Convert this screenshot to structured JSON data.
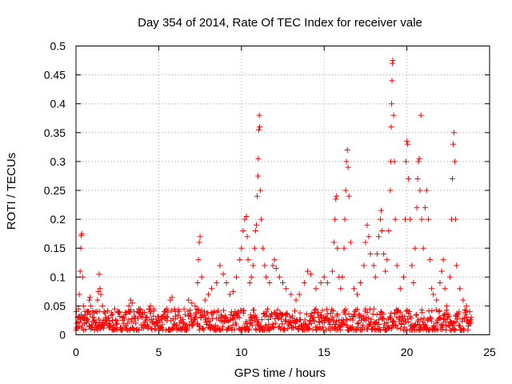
{
  "chart_data": {
    "type": "scatter",
    "title": "Day 354 of 2014, Rate Of TEC Index for receiver vale",
    "xlabel": "GPS time / hours",
    "ylabel": "ROTI / TECUs",
    "xlim": [
      0,
      25
    ],
    "ylim": [
      0,
      0.5
    ],
    "x_ticks": [
      0,
      5,
      10,
      15,
      20,
      25
    ],
    "x_tick_labels": [
      "0",
      "5",
      "10",
      "15",
      "20",
      "25"
    ],
    "y_ticks": [
      0,
      0.05,
      0.1,
      0.15,
      0.2,
      0.25,
      0.3,
      0.35,
      0.4,
      0.45,
      0.5
    ],
    "y_tick_labels": [
      "0",
      "0.05",
      "0.1",
      "0.15",
      "0.2",
      "0.25",
      "0.3",
      "0.35",
      "0.4",
      "0.45",
      "0.5"
    ],
    "grid": true,
    "marker": "+",
    "marker_color": "#ff0000",
    "series": [
      {
        "name": "ROTI",
        "points": [
          [
            0.05,
            0.02
          ],
          [
            0.1,
            0.03
          ],
          [
            0.15,
            0.045
          ],
          [
            0.2,
            0.07
          ],
          [
            0.25,
            0.11
          ],
          [
            0.3,
            0.15
          ],
          [
            0.32,
            0.172
          ],
          [
            0.35,
            0.175
          ],
          [
            0.4,
            0.1
          ],
          [
            0.45,
            0.05
          ],
          [
            0.5,
            0.03
          ],
          [
            0.6,
            0.025
          ],
          [
            0.7,
            0.04
          ],
          [
            0.8,
            0.06
          ],
          [
            0.85,
            0.065
          ],
          [
            0.9,
            0.05
          ],
          [
            1.0,
            0.03
          ],
          [
            1.1,
            0.025
          ],
          [
            1.2,
            0.04
          ],
          [
            1.3,
            0.06
          ],
          [
            1.35,
            0.075
          ],
          [
            1.4,
            0.105
          ],
          [
            1.45,
            0.08
          ],
          [
            1.5,
            0.07
          ],
          [
            1.6,
            0.05
          ],
          [
            1.7,
            0.04
          ],
          [
            1.8,
            0.03
          ],
          [
            2.0,
            0.02
          ],
          [
            2.2,
            0.025
          ],
          [
            2.5,
            0.02
          ],
          [
            2.8,
            0.03
          ],
          [
            3.0,
            0.035
          ],
          [
            3.2,
            0.05
          ],
          [
            3.3,
            0.06
          ],
          [
            3.4,
            0.055
          ],
          [
            3.5,
            0.04
          ],
          [
            3.8,
            0.045
          ],
          [
            4.0,
            0.035
          ],
          [
            4.2,
            0.03
          ],
          [
            4.5,
            0.05
          ],
          [
            4.7,
            0.045
          ],
          [
            5.0,
            0.025
          ],
          [
            5.2,
            0.03
          ],
          [
            5.5,
            0.045
          ],
          [
            5.7,
            0.06
          ],
          [
            5.8,
            0.065
          ],
          [
            6.0,
            0.04
          ],
          [
            6.3,
            0.03
          ],
          [
            6.6,
            0.035
          ],
          [
            6.8,
            0.06
          ],
          [
            7.0,
            0.055
          ],
          [
            7.2,
            0.05
          ],
          [
            7.35,
            0.09
          ],
          [
            7.4,
            0.13
          ],
          [
            7.45,
            0.16
          ],
          [
            7.5,
            0.17
          ],
          [
            7.6,
            0.1
          ],
          [
            7.8,
            0.06
          ],
          [
            8.0,
            0.07
          ],
          [
            8.2,
            0.08
          ],
          [
            8.5,
            0.09
          ],
          [
            8.7,
            0.12
          ],
          [
            8.9,
            0.105
          ],
          [
            9.1,
            0.09
          ],
          [
            9.3,
            0.07
          ],
          [
            9.5,
            0.075
          ],
          [
            9.7,
            0.1
          ],
          [
            9.9,
            0.13
          ],
          [
            10.0,
            0.15
          ],
          [
            10.1,
            0.18
          ],
          [
            10.2,
            0.2
          ],
          [
            10.3,
            0.205
          ],
          [
            10.35,
            0.17
          ],
          [
            10.4,
            0.13
          ],
          [
            10.5,
            0.09
          ],
          [
            10.6,
            0.1
          ],
          [
            10.7,
            0.12
          ],
          [
            10.8,
            0.15
          ],
          [
            10.85,
            0.18
          ],
          [
            10.9,
            0.19
          ],
          [
            10.95,
            0.24
          ],
          [
            11.0,
            0.275
          ],
          [
            11.02,
            0.305
          ],
          [
            11.05,
            0.355
          ],
          [
            11.08,
            0.38
          ],
          [
            11.1,
            0.36
          ],
          [
            11.15,
            0.25
          ],
          [
            11.2,
            0.2
          ],
          [
            11.3,
            0.15
          ],
          [
            11.4,
            0.12
          ],
          [
            11.5,
            0.1
          ],
          [
            11.7,
            0.09
          ],
          [
            11.9,
            0.12
          ],
          [
            12.0,
            0.13
          ],
          [
            12.1,
            0.115
          ],
          [
            12.3,
            0.1
          ],
          [
            12.5,
            0.09
          ],
          [
            12.7,
            0.08
          ],
          [
            13.0,
            0.07
          ],
          [
            13.3,
            0.06
          ],
          [
            13.5,
            0.07
          ],
          [
            13.8,
            0.09
          ],
          [
            14.0,
            0.11
          ],
          [
            14.2,
            0.105
          ],
          [
            14.5,
            0.08
          ],
          [
            14.8,
            0.09
          ],
          [
            15.0,
            0.1
          ],
          [
            15.2,
            0.09
          ],
          [
            15.5,
            0.11
          ],
          [
            15.6,
            0.16
          ],
          [
            15.65,
            0.2
          ],
          [
            15.7,
            0.235
          ],
          [
            15.75,
            0.24
          ],
          [
            15.8,
            0.15
          ],
          [
            15.9,
            0.1
          ],
          [
            16.0,
            0.08
          ],
          [
            16.1,
            0.1
          ],
          [
            16.2,
            0.15
          ],
          [
            16.25,
            0.2
          ],
          [
            16.3,
            0.25
          ],
          [
            16.35,
            0.3
          ],
          [
            16.4,
            0.32
          ],
          [
            16.45,
            0.29
          ],
          [
            16.5,
            0.24
          ],
          [
            16.6,
            0.16
          ],
          [
            16.8,
            0.08
          ],
          [
            17.0,
            0.07
          ],
          [
            17.2,
            0.09
          ],
          [
            17.4,
            0.12
          ],
          [
            17.5,
            0.16
          ],
          [
            17.6,
            0.19
          ],
          [
            17.7,
            0.17
          ],
          [
            17.8,
            0.14
          ],
          [
            18.0,
            0.12
          ],
          [
            18.1,
            0.1
          ],
          [
            18.2,
            0.14
          ],
          [
            18.3,
            0.17
          ],
          [
            18.4,
            0.2
          ],
          [
            18.45,
            0.215
          ],
          [
            18.5,
            0.18
          ],
          [
            18.6,
            0.14
          ],
          [
            18.7,
            0.11
          ],
          [
            18.8,
            0.13
          ],
          [
            18.9,
            0.18
          ],
          [
            19.0,
            0.25
          ],
          [
            19.02,
            0.3
          ],
          [
            19.05,
            0.36
          ],
          [
            19.08,
            0.4
          ],
          [
            19.1,
            0.44
          ],
          [
            19.12,
            0.47
          ],
          [
            19.15,
            0.475
          ],
          [
            19.2,
            0.38
          ],
          [
            19.25,
            0.3
          ],
          [
            19.3,
            0.2
          ],
          [
            19.4,
            0.12
          ],
          [
            19.6,
            0.08
          ],
          [
            19.8,
            0.1
          ],
          [
            19.9,
            0.2
          ],
          [
            19.95,
            0.3
          ],
          [
            20.0,
            0.335
          ],
          [
            20.05,
            0.33
          ],
          [
            20.1,
            0.27
          ],
          [
            20.2,
            0.2
          ],
          [
            20.3,
            0.12
          ],
          [
            20.4,
            0.09
          ],
          [
            20.5,
            0.15
          ],
          [
            20.6,
            0.22
          ],
          [
            20.65,
            0.27
          ],
          [
            20.7,
            0.3
          ],
          [
            20.75,
            0.305
          ],
          [
            20.8,
            0.25
          ],
          [
            20.85,
            0.38
          ],
          [
            20.9,
            0.2
          ],
          [
            21.0,
            0.15
          ],
          [
            21.1,
            0.22
          ],
          [
            21.2,
            0.25
          ],
          [
            21.3,
            0.2
          ],
          [
            21.4,
            0.13
          ],
          [
            21.5,
            0.08
          ],
          [
            21.6,
            0.07
          ],
          [
            21.8,
            0.06
          ],
          [
            22.0,
            0.09
          ],
          [
            22.1,
            0.11
          ],
          [
            22.2,
            0.13
          ],
          [
            22.3,
            0.08
          ],
          [
            22.4,
            0.05
          ],
          [
            22.6,
            0.1
          ],
          [
            22.7,
            0.2
          ],
          [
            22.75,
            0.27
          ],
          [
            22.8,
            0.33
          ],
          [
            22.85,
            0.35
          ],
          [
            22.9,
            0.3
          ],
          [
            22.95,
            0.2
          ],
          [
            23.0,
            0.12
          ],
          [
            23.2,
            0.08
          ],
          [
            23.4,
            0.06
          ],
          [
            23.6,
            0.05
          ],
          [
            23.8,
            0.04
          ]
        ]
      }
    ],
    "noise_floor": {
      "range": [
        0.008,
        0.045
      ],
      "x_from": 0,
      "x_to": 23.9
    }
  }
}
